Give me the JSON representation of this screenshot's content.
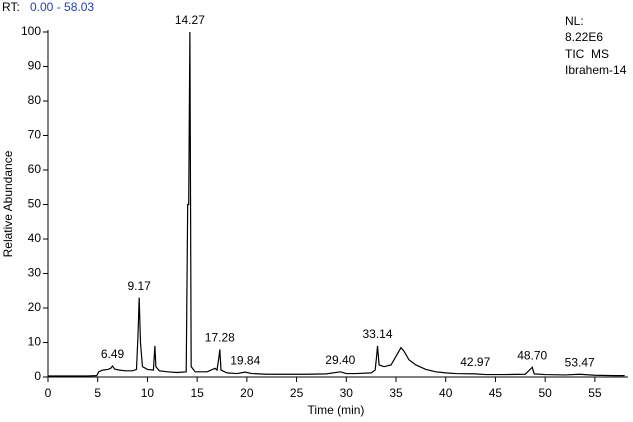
{
  "chart_data": {
    "type": "line",
    "rt_label": "RT:",
    "rt_range": "0.00 - 58.03",
    "info": [
      "NL:",
      "8.22E6",
      "TIC  MS",
      "Ibrahem-14"
    ],
    "x_label": "Time (min)",
    "y_label": "Relative Abundance",
    "color": "#000000",
    "xlim": [
      0,
      58.03
    ],
    "ylim": [
      0,
      100
    ],
    "xticks": [
      0,
      5,
      10,
      15,
      20,
      25,
      30,
      35,
      40,
      45,
      50,
      55
    ],
    "yticks": [
      0,
      10,
      20,
      30,
      40,
      50,
      60,
      70,
      80,
      90,
      100
    ],
    "x": [
      0,
      1,
      2,
      3,
      4,
      4.9,
      5.1,
      5.5,
      6.0,
      6.3,
      6.49,
      6.7,
      7.2,
      7.8,
      8.5,
      8.9,
      9.05,
      9.17,
      9.3,
      9.5,
      10,
      10.6,
      10.75,
      10.85,
      11.2,
      12,
      13,
      13.9,
      14.05,
      14.15,
      14.27,
      14.4,
      14.8,
      16,
      16.8,
      17,
      17.2,
      17.28,
      17.4,
      18,
      19,
      19.84,
      20.5,
      22,
      24,
      26,
      28,
      29.4,
      30,
      31,
      32.5,
      32.9,
      33.05,
      33.14,
      33.3,
      33.8,
      34.5,
      35,
      35.5,
      35.8,
      36.3,
      37,
      38,
      39,
      40,
      41,
      42.97,
      44,
      46,
      48,
      48.6,
      48.7,
      48.9,
      50,
      52,
      53.47,
      55,
      57,
      58
    ],
    "y": [
      0.3,
      0.3,
      0.3,
      0.3,
      0.3,
      0.4,
      1.5,
      2,
      2.2,
      2.5,
      3.2,
      2.3,
      2,
      1.8,
      1.8,
      2.2,
      12,
      23,
      10,
      3,
      2.2,
      2,
      9,
      3,
      1.8,
      1.5,
      1.3,
      1.5,
      50,
      50,
      100,
      3,
      1.5,
      1.5,
      2.5,
      2,
      6,
      8,
      2,
      1.2,
      1,
      1.4,
      1,
      0.8,
      0.8,
      0.8,
      0.9,
      1.5,
      1,
      1,
      1.2,
      2,
      6,
      9,
      3.5,
      3,
      3.5,
      6,
      8.5,
      7.5,
      5,
      3.5,
      2.2,
      1.5,
      1.2,
      1,
      0.9,
      0.7,
      0.7,
      0.8,
      2.5,
      2.8,
      0.9,
      0.7,
      0.6,
      0.8,
      0.5,
      0.4,
      0.4
    ],
    "annotations": [
      {
        "text": "6.49",
        "x": 6.49,
        "y": 3.2
      },
      {
        "text": "9.17",
        "x": 9.17,
        "y": 23
      },
      {
        "text": "14.27",
        "x": 14.27,
        "y": 100
      },
      {
        "text": "17.28",
        "x": 17.28,
        "y": 8
      },
      {
        "text": "19.84",
        "x": 19.84,
        "y": 1.4
      },
      {
        "text": "29.40",
        "x": 29.4,
        "y": 1.5
      },
      {
        "text": "33.14",
        "x": 33.14,
        "y": 9
      },
      {
        "text": "42.97",
        "x": 42.97,
        "y": 0.9
      },
      {
        "text": "48.70",
        "x": 48.7,
        "y": 2.8
      },
      {
        "text": "53.47",
        "x": 53.47,
        "y": 0.8
      }
    ]
  }
}
